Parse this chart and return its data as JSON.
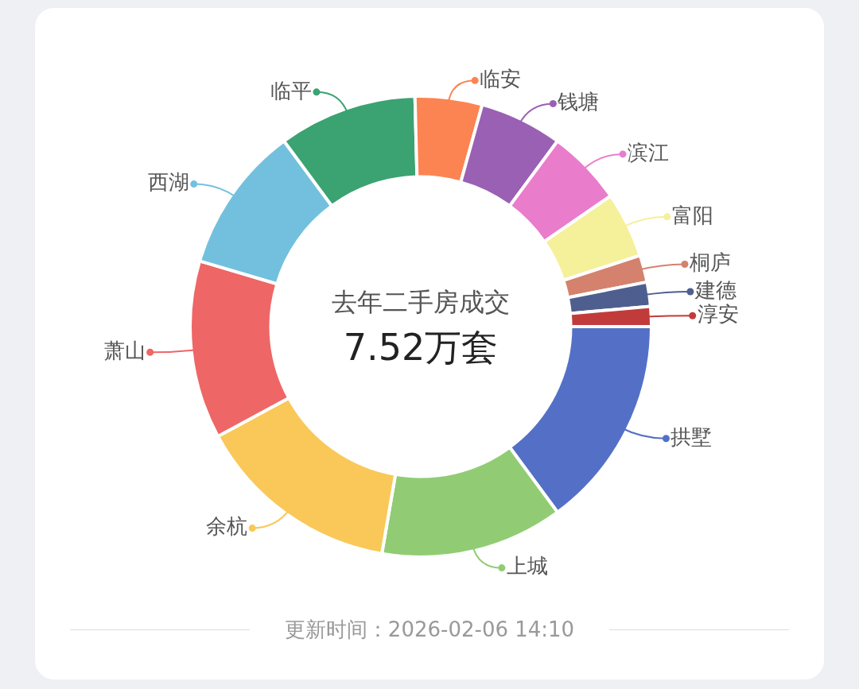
{
  "chart_data": {
    "type": "donut",
    "title": "去年二手房成交",
    "subtitle": "7.52万套",
    "categories": [
      "拱墅",
      "上城",
      "余杭",
      "萧山",
      "西湖",
      "临平",
      "临安",
      "钱塘",
      "滨江",
      "富阳",
      "桐庐",
      "建德",
      "淳安"
    ],
    "values": [
      14.9,
      12.8,
      14.4,
      12.5,
      10.3,
      9.7,
      4.7,
      5.8,
      5.3,
      4.6,
      1.9,
      1.7,
      1.4
    ],
    "colors": [
      "#5470c6",
      "#91cc75",
      "#fac858",
      "#ee6666",
      "#73c0de",
      "#3ba272",
      "#fc8452",
      "#9a60b4",
      "#ea7ccc",
      "#f5f09a",
      "#d4826e",
      "#4e5f8f",
      "#c23b3b"
    ],
    "legend": "right",
    "annotations": [
      "更新时间：2026-02-06 14:10"
    ]
  }
}
